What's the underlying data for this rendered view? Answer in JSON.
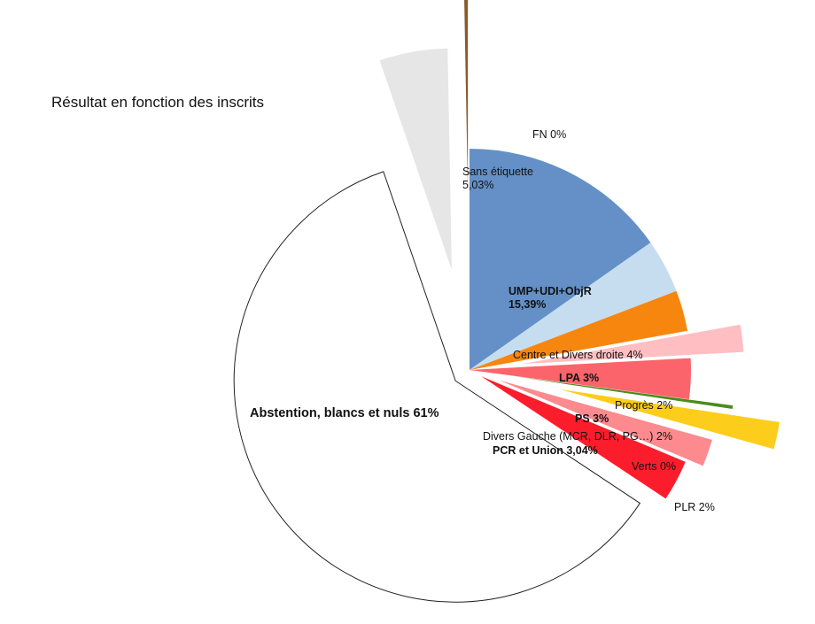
{
  "chart_data": {
    "type": "pie",
    "title": "Résultat en fonction des inscrits",
    "legend": "none",
    "slices": [
      {
        "id": "umpudi",
        "label": [
          "UMP+UDI+ObjR",
          "15,39%"
        ],
        "value": 15.39,
        "color": "#6490c7",
        "explode": 0,
        "label_bold": true
      },
      {
        "id": "centre",
        "label": [
          "Centre et Divers droite 4%"
        ],
        "value": 4,
        "color": "#c6ddf0",
        "explode": 0,
        "label_bold": false
      },
      {
        "id": "lpa",
        "label": [
          "LPA 3%"
        ],
        "value": 3,
        "color": "#f7860f",
        "explode": 0,
        "label_bold": true
      },
      {
        "id": "progres",
        "label": [
          "Progrès 2%"
        ],
        "value": 2,
        "color": "#ffbec2",
        "explode": 60,
        "label_bold": false
      },
      {
        "id": "ps",
        "label": [
          "PS 3%"
        ],
        "value": 3,
        "color": "#fc646c",
        "explode": 0,
        "label_bold": true
      },
      {
        "id": "verts",
        "label": [
          "Verts 0%"
        ],
        "value": 0.25,
        "color": "#4a8c1c",
        "explode": 50,
        "label_bold": false
      },
      {
        "id": "plr",
        "label": [
          "PLR 2%"
        ],
        "value": 2,
        "color": "#fdcd1b",
        "explode": 105,
        "label_bold": false
      },
      {
        "id": "divgauche",
        "label": [
          "Divers Gauche (MCR, DLR, PG…) 2%"
        ],
        "value": 2,
        "color": "#fc8a8e",
        "explode": 35,
        "label_bold": false
      },
      {
        "id": "pcr",
        "label": [
          "PCR et Union 3,04%"
        ],
        "value": 3.04,
        "color": "#fb1d2c",
        "explode": 15,
        "label_bold": true
      },
      {
        "id": "abstention",
        "label": [
          "Abstention, blancs et nuls 61%"
        ],
        "value": 61,
        "color": "#ffffff",
        "explode": 20,
        "label_bold": true
      },
      {
        "id": "sans",
        "label": [
          "Sans étiquette",
          "5,03%"
        ],
        "value": 5.03,
        "color": "#e6e6e6",
        "explode": 115,
        "label_bold": false
      },
      {
        "id": "fn",
        "label": [
          "FN 0%"
        ],
        "value": 0.3,
        "color": "#8a5a2b",
        "explode": 200,
        "label_bold": false
      }
    ]
  }
}
